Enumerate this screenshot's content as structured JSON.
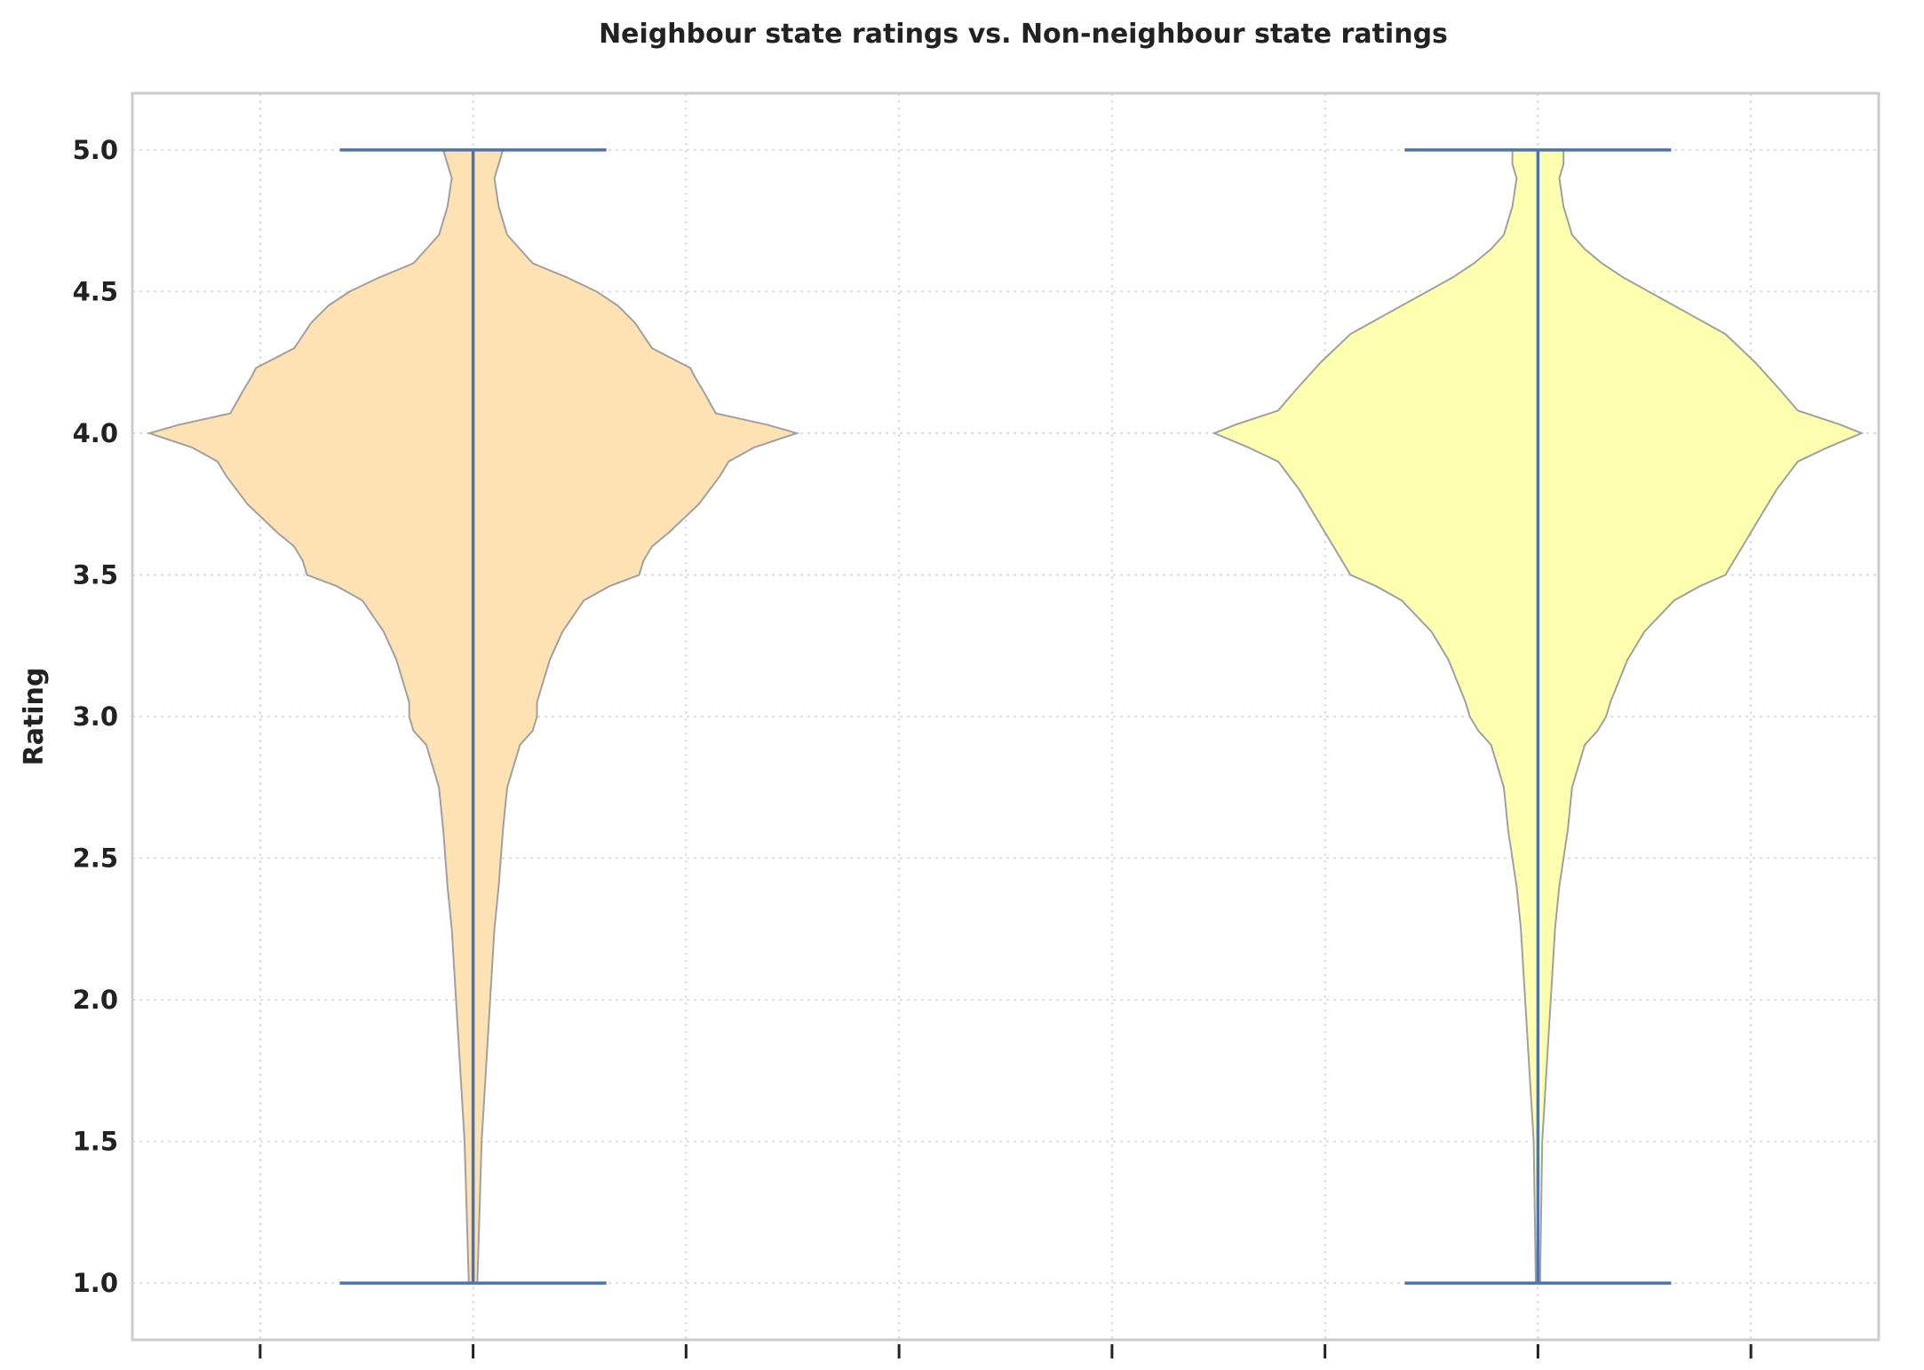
{
  "chart_data": {
    "type": "violin",
    "title": "Neighbour state ratings vs. Non-neighbour state ratings",
    "xlabel": "",
    "ylabel": "Rating",
    "ylim": [
      0.8,
      5.2
    ],
    "yticks": [
      "1.0",
      "1.5",
      "2.0",
      "2.5",
      "3.0",
      "3.5",
      "4.0",
      "4.5",
      "5.0"
    ],
    "x_tick_positions": [
      0.5,
      1,
      1.5,
      2,
      2.5,
      3,
      3.5,
      4
    ],
    "xlim": [
      0.2,
      4.3
    ],
    "grid": true,
    "whisker_color": "#4c72b0",
    "edge_color": "#a0a0a0",
    "series": [
      {
        "position": 1,
        "min": 1.0,
        "max": 5.0,
        "fill": "#ffe2b3",
        "density": [
          [
            1.0,
            0.01
          ],
          [
            1.5,
            0.02
          ],
          [
            2.0,
            0.04
          ],
          [
            2.25,
            0.05
          ],
          [
            2.4,
            0.06
          ],
          [
            2.6,
            0.07
          ],
          [
            2.75,
            0.08
          ],
          [
            2.9,
            0.11
          ],
          [
            2.95,
            0.14
          ],
          [
            3.0,
            0.15
          ],
          [
            3.05,
            0.15
          ],
          [
            3.2,
            0.18
          ],
          [
            3.3,
            0.21
          ],
          [
            3.41,
            0.26
          ],
          [
            3.46,
            0.32
          ],
          [
            3.5,
            0.39
          ],
          [
            3.55,
            0.4
          ],
          [
            3.6,
            0.42
          ],
          [
            3.65,
            0.46
          ],
          [
            3.75,
            0.53
          ],
          [
            3.85,
            0.58
          ],
          [
            3.9,
            0.6
          ],
          [
            3.95,
            0.66
          ],
          [
            4.0,
            0.76
          ],
          [
            4.03,
            0.69
          ],
          [
            4.07,
            0.57
          ],
          [
            4.15,
            0.54
          ],
          [
            4.2,
            0.52
          ],
          [
            4.23,
            0.51
          ],
          [
            4.3,
            0.42
          ],
          [
            4.39,
            0.38
          ],
          [
            4.45,
            0.34
          ],
          [
            4.5,
            0.29
          ],
          [
            4.55,
            0.22
          ],
          [
            4.6,
            0.14
          ],
          [
            4.65,
            0.11
          ],
          [
            4.7,
            0.08
          ],
          [
            4.8,
            0.06
          ],
          [
            4.9,
            0.05
          ],
          [
            4.95,
            0.06
          ],
          [
            5.0,
            0.07
          ]
        ]
      },
      {
        "position": 3.5,
        "min": 1.0,
        "max": 5.0,
        "fill": "#ffffb0",
        "density": [
          [
            1.0,
            0.005
          ],
          [
            1.5,
            0.01
          ],
          [
            2.0,
            0.03
          ],
          [
            2.25,
            0.04
          ],
          [
            2.4,
            0.05
          ],
          [
            2.6,
            0.07
          ],
          [
            2.75,
            0.08
          ],
          [
            2.9,
            0.11
          ],
          [
            2.95,
            0.14
          ],
          [
            3.0,
            0.16
          ],
          [
            3.05,
            0.17
          ],
          [
            3.2,
            0.21
          ],
          [
            3.3,
            0.25
          ],
          [
            3.41,
            0.32
          ],
          [
            3.46,
            0.38
          ],
          [
            3.5,
            0.44
          ],
          [
            3.6,
            0.48
          ],
          [
            3.7,
            0.52
          ],
          [
            3.8,
            0.56
          ],
          [
            3.9,
            0.61
          ],
          [
            3.95,
            0.68
          ],
          [
            4.0,
            0.76
          ],
          [
            4.03,
            0.71
          ],
          [
            4.08,
            0.61
          ],
          [
            4.15,
            0.57
          ],
          [
            4.25,
            0.51
          ],
          [
            4.35,
            0.44
          ],
          [
            4.45,
            0.32
          ],
          [
            4.5,
            0.26
          ],
          [
            4.55,
            0.2
          ],
          [
            4.6,
            0.15
          ],
          [
            4.65,
            0.11
          ],
          [
            4.7,
            0.08
          ],
          [
            4.8,
            0.06
          ],
          [
            4.9,
            0.05
          ],
          [
            4.95,
            0.06
          ],
          [
            5.0,
            0.06
          ]
        ]
      }
    ]
  }
}
